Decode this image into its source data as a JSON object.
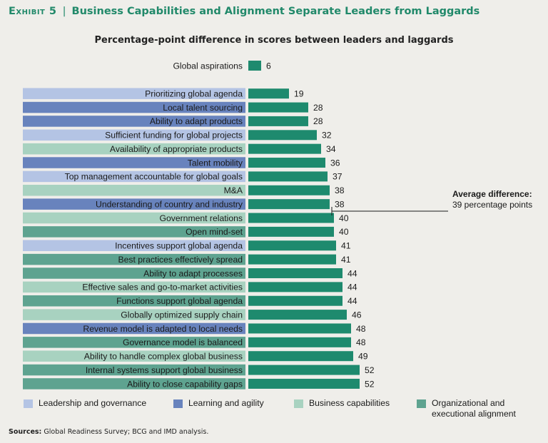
{
  "header": {
    "exhibit_label": "Exhibit 5",
    "separator": "|",
    "title": "Business Capabilities and Alignment Separate Leaders from Laggards"
  },
  "chart_data": {
    "type": "bar",
    "orientation": "horizontal",
    "title": "Percentage-point difference in scores between leaders and laggards",
    "categories": [
      "Global aspirations",
      "Prioritizing global agenda",
      "Local talent sourcing",
      "Ability to adapt products",
      "Sufficient funding for global projects",
      "Availability of appropriate products",
      "Talent mobility",
      "Top management accountable for global goals",
      "M&A",
      "Understanding of country and industry",
      "Government relations",
      "Open mind-set",
      "Incentives support global agenda",
      "Best practices effectively spread",
      "Ability to adapt processes",
      "Effective sales and go-to-market activities",
      "Functions support global agenda",
      "Globally optimized supply chain",
      "Revenue model is adapted to local needs",
      "Governance model is balanced",
      "Ability to handle complex global business",
      "Internal systems support global business",
      "Ability to close capability gaps"
    ],
    "values": [
      6,
      19,
      28,
      28,
      32,
      34,
      36,
      37,
      38,
      38,
      40,
      40,
      41,
      41,
      44,
      44,
      44,
      46,
      48,
      48,
      49,
      52,
      52
    ],
    "groups": [
      "none",
      "leadership",
      "learning",
      "learning",
      "leadership",
      "business",
      "learning",
      "leadership",
      "business",
      "learning",
      "business",
      "org",
      "leadership",
      "org",
      "org",
      "business",
      "org",
      "business",
      "learning",
      "org",
      "business",
      "org",
      "org"
    ],
    "annotation": {
      "value": 39,
      "heading": "Average difference:",
      "text": "39 percentage points"
    },
    "legend": [
      {
        "key": "leadership",
        "label": "Leadership and governance",
        "color": "#b4c4e4"
      },
      {
        "key": "learning",
        "label": "Learning and agility",
        "color": "#6883bd"
      },
      {
        "key": "business",
        "label": "Business capabilities",
        "color": "#a8d2c0"
      },
      {
        "key": "org",
        "label": "Organizational and executional alignment",
        "color": "#5ea390"
      }
    ],
    "bar_color": "#1e8a6e",
    "xlim": [
      0,
      60
    ]
  },
  "footer": {
    "sources_label": "Sources:",
    "sources_text": "Global Readiness Survey; BCG and IMD analysis."
  }
}
